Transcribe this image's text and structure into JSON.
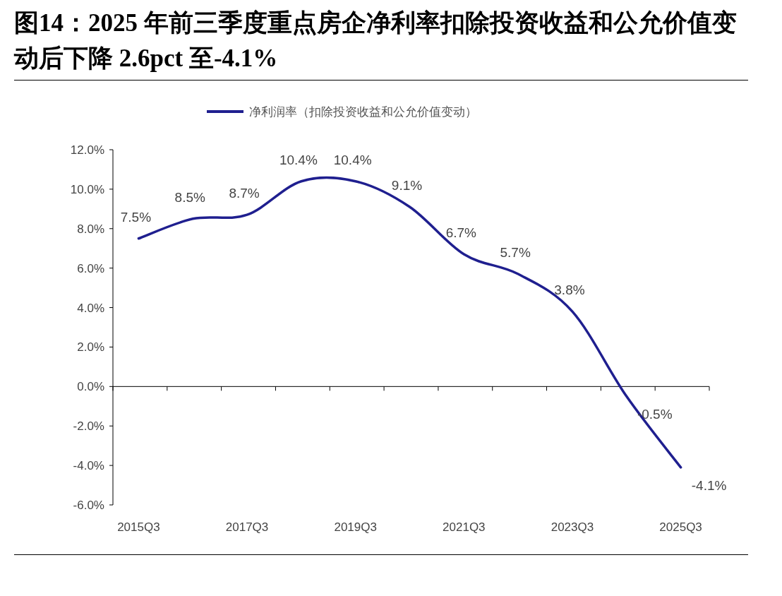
{
  "chart_data": {
    "type": "line",
    "title": "图14：2025 年前三季度重点房企净利率扣除投资收益和公允价值变动后下降 2.6pct 至-4.1%",
    "categories": [
      "2015Q3",
      null,
      "2017Q3",
      null,
      "2019Q3",
      null,
      "2021Q3",
      null,
      "2023Q3",
      null,
      "2025Q3"
    ],
    "series": [
      {
        "name": "净利润率（扣除投资收益和公允价值变动）",
        "color": "#1f1f8f",
        "values": [
          7.5,
          8.5,
          8.7,
          10.4,
          10.4,
          9.1,
          6.7,
          5.7,
          3.8,
          -0.5,
          -4.1
        ],
        "value_labels": [
          "7.5%",
          "8.5%",
          "8.7%",
          "10.4%",
          "10.4%",
          "9.1%",
          "6.7%",
          "5.7%",
          "3.8%",
          "-0.5%",
          "-4.1%"
        ]
      }
    ],
    "ylim": [
      -6,
      12
    ],
    "yticks": [
      {
        "value": -6,
        "label": "-6.0%"
      },
      {
        "value": -4,
        "label": "-4.0%"
      },
      {
        "value": -2,
        "label": "-2.0%"
      },
      {
        "value": 0,
        "label": "0.0%"
      },
      {
        "value": 2,
        "label": "2.0%"
      },
      {
        "value": 4,
        "label": "4.0%"
      },
      {
        "value": 6,
        "label": "6.0%"
      },
      {
        "value": 8,
        "label": "8.0%"
      },
      {
        "value": 10,
        "label": "10.0%"
      },
      {
        "value": 12,
        "label": "12.0%"
      }
    ],
    "legend": "top",
    "marker": "none",
    "line_style": "solid"
  }
}
